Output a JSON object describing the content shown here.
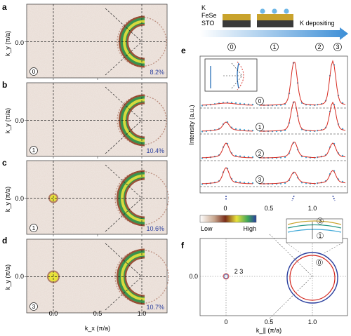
{
  "panels": {
    "a": {
      "letter": "a",
      "step": "0",
      "percent": "8.2%"
    },
    "b": {
      "letter": "b",
      "step": "1",
      "percent": "10.4%"
    },
    "c": {
      "letter": "c",
      "step": "1",
      "percent": "10.6%"
    },
    "d": {
      "letter": "d",
      "step": "3",
      "percent": "10.7%"
    },
    "e": {
      "letter": "e"
    },
    "f": {
      "letter": "f"
    }
  },
  "map_axes": {
    "ylabel": "k_y (π/a)",
    "yticks": [
      "0.0"
    ],
    "xticks": [
      "0.0",
      "0.5",
      "1.0"
    ],
    "xlabel": "k_x (π/a)"
  },
  "schematic": {
    "layers": [
      "K",
      "FeSe",
      "STO"
    ],
    "arrow_label": "K depositing",
    "steps": [
      "0",
      "1",
      "2",
      "3"
    ]
  },
  "edc_panel": {
    "ylabel": "Intensity (a.u.)",
    "xticks": [
      "0",
      "0.5",
      "1.0"
    ],
    "curve_labels": [
      "0",
      "1",
      "2",
      "3"
    ]
  },
  "colorbar": {
    "low": "Low",
    "high": "High"
  },
  "fermi_panel": {
    "yticks": [
      "0.0"
    ],
    "xticks": [
      "0",
      "0.5",
      "1.0"
    ],
    "xlabel": "k_∥ (π/a)",
    "labels": {
      "center": "2 3",
      "pocket": "0"
    },
    "inset_labels": [
      "3",
      "1"
    ]
  },
  "colors": {
    "pocket_dark": "#8c3a1c",
    "pocket_green": "#2f9a52",
    "pocket_yellow": "#e8e23c",
    "map_bg": "#efe7e2",
    "edc_points": "#3ea8d8",
    "edc_fit": "#d62a20",
    "blue_circle": "#2a3f9e",
    "red_circle": "#d3261d"
  }
}
